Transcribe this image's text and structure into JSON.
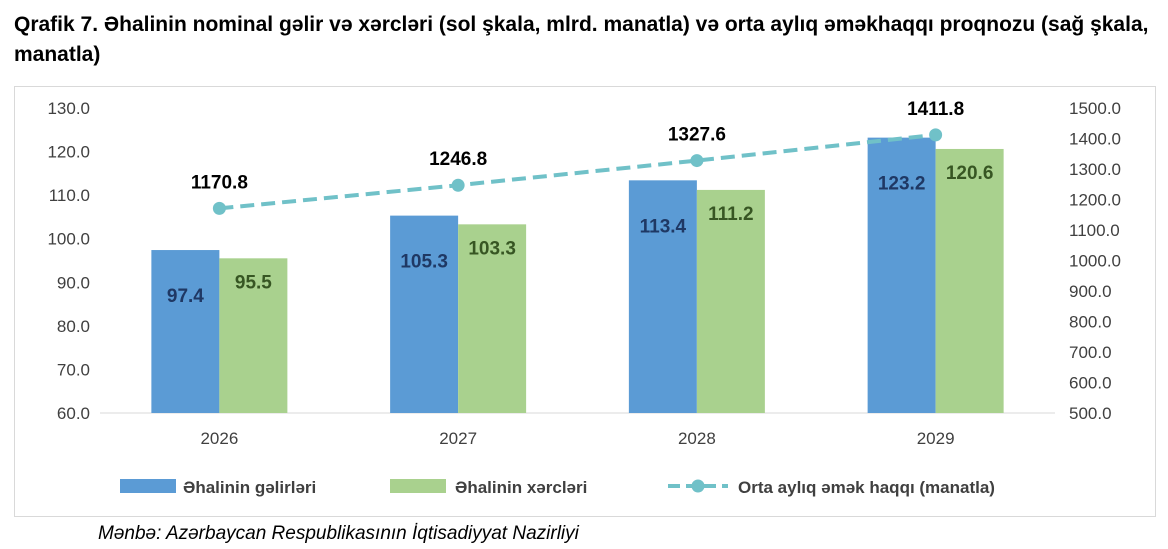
{
  "title": "Qrafik 7. Əhalinin nominal gəlir və xərcləri (sol şkala, mlrd. manatla) və orta aylıq əməkhaqqı proqnozu (sağ şkala, manatla)",
  "source": "Mənbə: Azərbaycan Respublikasının İqtisadiyyat Nazirliyi",
  "colors": {
    "income": "#5b9bd5",
    "expenses": "#a9d18e",
    "wage": "#70c1c8",
    "income_label": "#1f3864",
    "expenses_label": "#375623"
  },
  "chart_data": {
    "type": "bar",
    "categories": [
      "2026",
      "2027",
      "2028",
      "2029"
    ],
    "series": [
      {
        "name": "Əhalinin gəlirləri",
        "values": [
          97.4,
          105.3,
          113.4,
          123.2
        ],
        "axis": "left",
        "type": "bar",
        "labels": [
          "97.4",
          "105.3",
          "113.4",
          "123.2"
        ]
      },
      {
        "name": "Əhalinin xərcləri",
        "values": [
          95.5,
          103.3,
          111.2,
          120.6
        ],
        "axis": "left",
        "type": "bar",
        "labels": [
          "95.5",
          "103.3",
          "111.2",
          "120.6"
        ]
      },
      {
        "name": "Orta aylıq əmək haqqı (manatla)",
        "values": [
          1170.8,
          1246.8,
          1327.6,
          1411.8
        ],
        "axis": "right",
        "type": "line",
        "labels": [
          "1170.8",
          "1246.8",
          "1327.6",
          "1411.8"
        ]
      }
    ],
    "y_left": {
      "lim": [
        60,
        130
      ],
      "ticks": [
        "60.0",
        "70.0",
        "80.0",
        "90.0",
        "100.0",
        "110.0",
        "120.0",
        "130.0"
      ]
    },
    "y_right": {
      "lim": [
        500,
        1500
      ],
      "ticks": [
        "500.0",
        "600.0",
        "700.0",
        "800.0",
        "900.0",
        "1000.0",
        "1100.0",
        "1200.0",
        "1300.0",
        "1400.0",
        "1500.0"
      ]
    },
    "grid": false,
    "legend": "bottom"
  }
}
